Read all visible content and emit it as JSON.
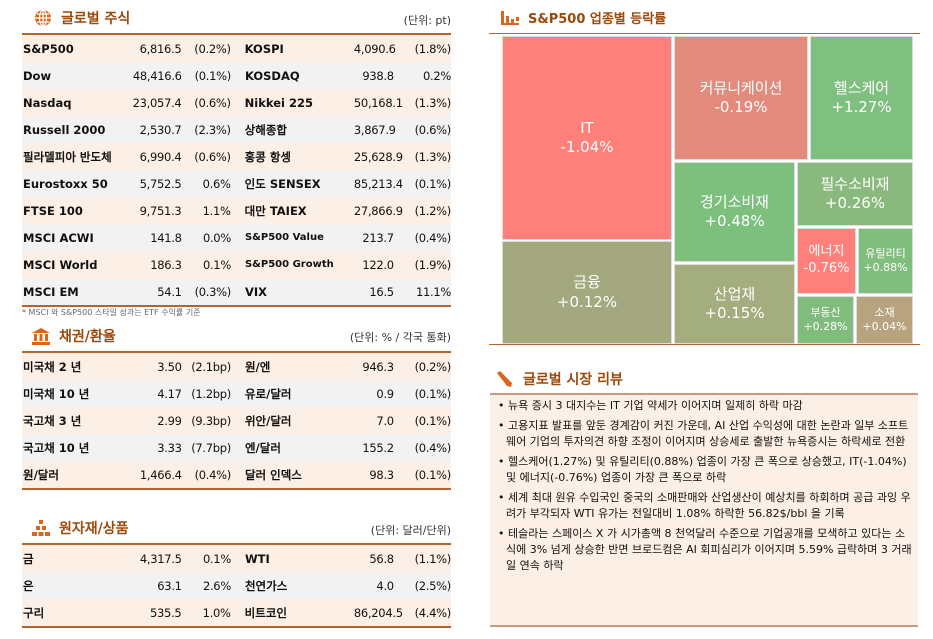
{
  "equities": {
    "title": "글로벌 주식",
    "unit": "(단위: pt)",
    "note": "* MSCI 와 S&P500 스타일 성과는 ETF 수익률 기준",
    "rows": [
      [
        "S&P500",
        "6,816.5",
        "(0.2%)",
        "KOSPI",
        "4,090.6",
        "(1.8%)"
      ],
      [
        "Dow",
        "48,416.6",
        "(0.1%)",
        "KOSDAQ",
        "938.8",
        "0.2%"
      ],
      [
        "Nasdaq",
        "23,057.4",
        "(0.6%)",
        "Nikkei 225",
        "50,168.1",
        "(1.3%)"
      ],
      [
        "Russell 2000",
        "2,530.7",
        "(2.3%)",
        "상해종합",
        "3,867.9",
        "(0.6%)"
      ],
      [
        "필라델피아 반도체",
        "6,990.4",
        "(0.6%)",
        "홍콩 항셍",
        "25,628.9",
        "(1.3%)"
      ],
      [
        "Eurostoxx 50",
        "5,752.5",
        "0.6%",
        "인도 SENSEX",
        "85,213.4",
        "(0.1%)"
      ],
      [
        "FTSE 100",
        "9,751.3",
        "1.1%",
        "대만 TAIEX",
        "27,866.9",
        "(1.2%)"
      ],
      [
        "MSCI ACWI",
        "141.8",
        "0.0%",
        "S&P500 Value",
        "213.7",
        "(0.4%)"
      ],
      [
        "MSCI World",
        "186.3",
        "0.1%",
        "S&P500 Growth",
        "122.0",
        "(1.9%)"
      ],
      [
        "MSCI EM",
        "54.1",
        "(0.3%)",
        "VIX",
        "16.5",
        "11.1%"
      ]
    ]
  },
  "bonds": {
    "title": "채권/환율",
    "unit": "(단위: % / 각국 통화)",
    "rows": [
      [
        "미국채 2 년",
        "3.50",
        "(2.1bp)",
        "원/엔",
        "946.3",
        "(0.2%)"
      ],
      [
        "미국채 10 년",
        "4.17",
        "(1.2bp)",
        "유로/달러",
        "0.9",
        "(0.1%)"
      ],
      [
        "국고채 3 년",
        "2.99",
        "(9.3bp)",
        "위안/달러",
        "7.0",
        "(0.1%)"
      ],
      [
        "국고채 10 년",
        "3.33",
        "(7.7bp)",
        "엔/달러",
        "155.2",
        "(0.4%)"
      ],
      [
        "원/달러",
        "1,466.4",
        "(0.4%)",
        "달러 인덱스",
        "98.3",
        "(0.1%)"
      ]
    ]
  },
  "commodities": {
    "title": "원자재/상품",
    "unit": "(단위: 달러/단위)",
    "rows": [
      [
        "금",
        "4,317.5",
        "0.1%",
        "WTI",
        "56.8",
        "(1.1%)"
      ],
      [
        "은",
        "63.1",
        "2.6%",
        "천연가스",
        "4.0",
        "(2.5%)"
      ],
      [
        "구리",
        "535.5",
        "1.0%",
        "비트코인",
        "86,204.5",
        "(4.4%)"
      ]
    ]
  },
  "sectors": {
    "title": "S&P500 업종별 등락률",
    "items": [
      {
        "name": "IT",
        "value": "-1.04%",
        "color": "#ff7f7a"
      },
      {
        "name": "금융",
        "value": "+0.12%",
        "color": "#a3a87e"
      },
      {
        "name": "커뮤니케이션",
        "value": "-0.19%",
        "color": "#e28a7c"
      },
      {
        "name": "헬스케어",
        "value": "+1.27%",
        "color": "#7fbf7f"
      },
      {
        "name": "경기소비재",
        "value": "+0.48%",
        "color": "#7dc07e"
      },
      {
        "name": "산업재",
        "value": "+0.15%",
        "color": "#a3ad7e"
      },
      {
        "name": "필수소비재",
        "value": "+0.26%",
        "color": "#8ab97d"
      },
      {
        "name": "에너지",
        "value": "-0.76%",
        "color": "#ff7f7a"
      },
      {
        "name": "유틸리티",
        "value": "+0.88%",
        "color": "#80be7d"
      },
      {
        "name": "부동산",
        "value": "+0.28%",
        "color": "#80bd7c"
      },
      {
        "name": "소재",
        "value": "+0.04%",
        "color": "#b7a47e"
      }
    ]
  },
  "review": {
    "title": "글로벌 시장 리뷰",
    "bullets": [
      "• 뉴욕 증시 3 대지수는 IT 기업 약세가 이어지며 일제히 하락 마감",
      "• 고용지표 발표를 앞둔 경계감이 커진 가운데, AI 산업 수익성에 대한 논란과 일부 소프트웨어 기업의 투자의견 하향 조정이 이어지며 상승세로 출발한 뉴욕증시는 하락세로 전환",
      "• 헬스케어(1.27%) 및 유틸리티(0.88%) 업종이 가장 큰 폭으로 상승했고, IT(-1.04%) 및 에너지(-0.76%) 업종이 가장 큰 폭으로 하락",
      "• 세계 최대 원유 수입국인 중국의 소매판매와 산업생산이 예상치를 하회하며 공급 과잉 우려가 부각되자 WTI 유가는 전일대비 1.08% 하락한 56.82$/bbl 을 기록",
      "• 테슬라는 스페이스 X 가 시가총액 8 천억달러 수준으로 기업공개를 모색하고 있다는 소식에 3% 넘게 상승한 반면 브로드컴은 AI 회피심리가 이어지며 5.59% 급락하며 3 거래일 연속 하락"
    ]
  },
  "colors": {
    "accent": "#9c4a0c",
    "rule": "#b5642c"
  }
}
